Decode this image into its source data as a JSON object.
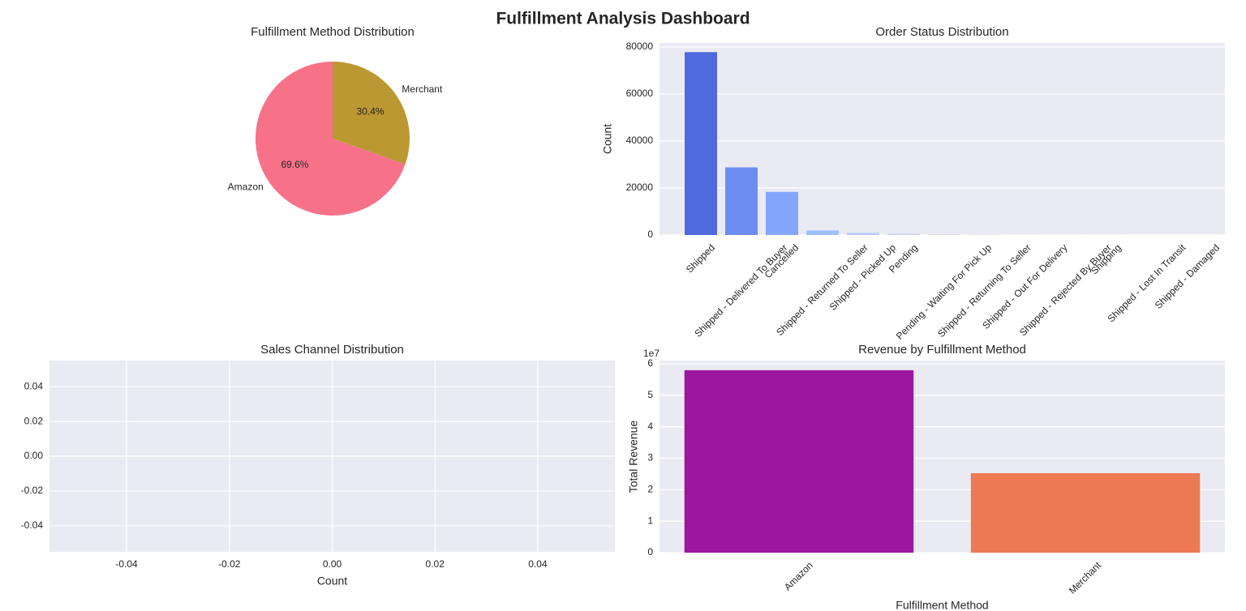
{
  "title": "Fulfillment Analysis Dashboard",
  "chart_data": [
    {
      "type": "pie",
      "title": "Fulfillment Method Distribution",
      "categories": [
        "Amazon",
        "Merchant"
      ],
      "values": [
        69.6,
        30.4
      ],
      "value_labels": [
        "69.6%",
        "30.4%"
      ],
      "colors": [
        "#f77189",
        "#bb9832"
      ],
      "start_angle": 90
    },
    {
      "type": "bar",
      "title": "Order Status Distribution",
      "ylabel": "Count",
      "categories": [
        "Shipped",
        "Shipped - Delivered To Buyer",
        "Cancelled",
        "Shipped - Returned To Seller",
        "Shipped - Picked Up",
        "Pending",
        "Pending - Waiting For Pick Up",
        "Shipped - Returning To Seller",
        "Shipped - Out For Delivery",
        "Shipped - Rejected By Buyer",
        "Shipping",
        "Shipped - Lost In Transit",
        "Shipped - Damaged"
      ],
      "values": [
        77804,
        28769,
        18332,
        1953,
        973,
        658,
        281,
        145,
        35,
        11,
        8,
        5,
        1
      ],
      "colors": [
        "#4f6ade",
        "#6b8df0",
        "#84a7fc",
        "#9fbfff",
        "#b7cff9",
        "#cbd8ee",
        "#dddcdc",
        "#ecd3c5",
        "#f5c4ac",
        "#f7af91",
        "#f39475",
        "#e7745b",
        "#d65244"
      ],
      "ylim": [
        0,
        81700
      ],
      "yticks": [
        0,
        20000,
        40000,
        60000,
        80000
      ],
      "grid": true
    },
    {
      "type": "barh",
      "title": "Sales Channel Distribution",
      "xlabel": "Count",
      "categories": [],
      "values": [],
      "xlim": [
        -0.055,
        0.055
      ],
      "ylim": [
        -0.055,
        0.055
      ],
      "xticks": [
        -0.04,
        -0.02,
        {
          "value": 0,
          "label": "0.00"
        },
        0.02,
        0.04
      ],
      "yticks": [
        0.04,
        0.02,
        {
          "value": 0,
          "label": "0.00"
        },
        -0.02,
        -0.04
      ],
      "grid": true
    },
    {
      "type": "bar",
      "title": "Revenue by Fulfillment Method",
      "xlabel": "Fulfillment Method",
      "ylabel": "Total Revenue",
      "offset_text": "1e7",
      "categories": [
        "Amazon",
        "Merchant"
      ],
      "values": [
        57940000,
        25240000
      ],
      "colors": [
        "#9c179e",
        "#ed7953"
      ],
      "ylim": [
        0,
        61000000
      ],
      "yticks": [
        {
          "value": 0,
          "label": "0"
        },
        {
          "value": 10000000,
          "label": "1"
        },
        {
          "value": 20000000,
          "label": "2"
        },
        {
          "value": 30000000,
          "label": "3"
        },
        {
          "value": 40000000,
          "label": "4"
        },
        {
          "value": 50000000,
          "label": "5"
        },
        {
          "value": 60000000,
          "label": "6"
        }
      ],
      "grid": true
    }
  ]
}
